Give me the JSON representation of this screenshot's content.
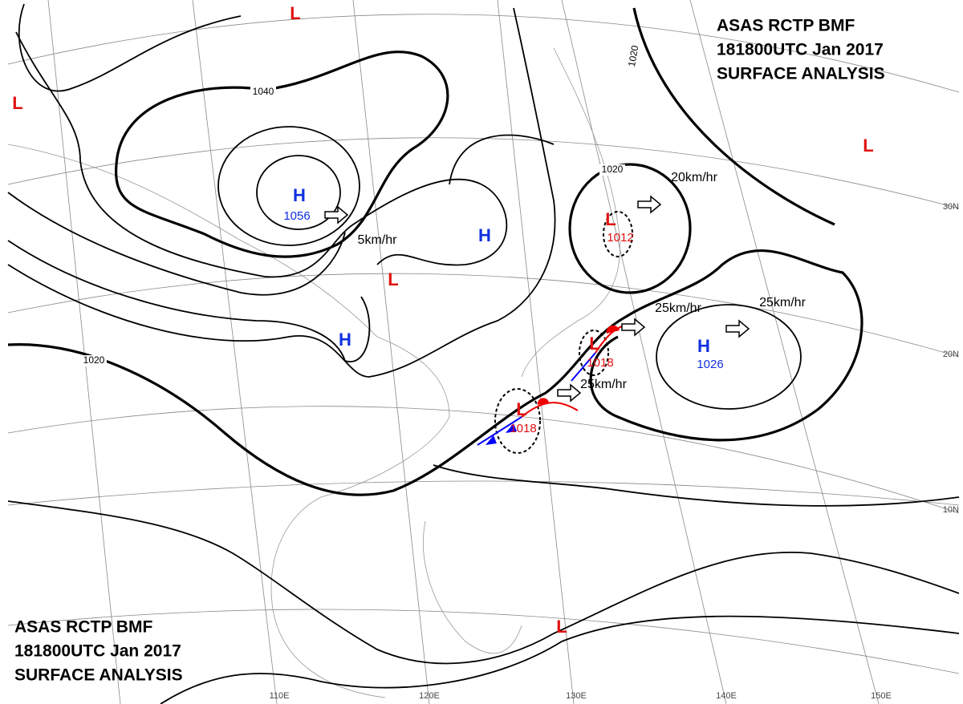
{
  "title_lines": [
    "ASAS    RCTP    BMF",
    "181800UTC    Jan    2017",
    "SURFACE  ANALYSIS"
  ],
  "pressure_centers": [
    {
      "type": "L"
    },
    {
      "type": "L"
    },
    {
      "type": "H",
      "pressure": "1056"
    },
    {
      "type": "H"
    },
    {
      "type": "L"
    },
    {
      "type": "H"
    },
    {
      "type": "L",
      "pressure": "1012"
    },
    {
      "type": "H",
      "pressure": "1026"
    },
    {
      "type": "L",
      "pressure": "1018"
    },
    {
      "type": "L",
      "pressure": "1018"
    },
    {
      "type": "L"
    },
    {
      "type": "L"
    }
  ],
  "motion_labels": [
    "5km/hr",
    "20km/hr",
    "25km/hr",
    "25km/hr",
    "25km/hr"
  ],
  "isobar_labels": [
    "1040",
    "1020",
    "1020",
    "1020"
  ],
  "latitude_labels": [
    "30N",
    "20N",
    "10N"
  ],
  "longitude_labels": [
    "110E",
    "120E",
    "130E",
    "140E",
    "150E"
  ]
}
